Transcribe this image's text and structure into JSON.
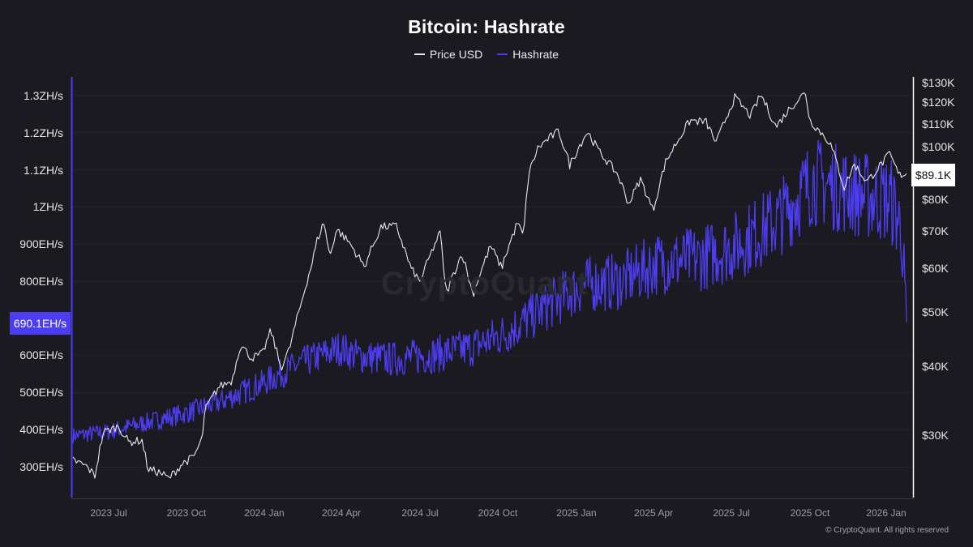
{
  "chart_data": {
    "type": "line",
    "title": "Bitcoin: Hashrate",
    "legend": [
      {
        "name": "Price USD",
        "color": "#e8e8ee"
      },
      {
        "name": "Hashrate",
        "color": "#4c3df2"
      }
    ],
    "x_ticks": [
      "2023 Jul",
      "2023 Oct",
      "2024 Jan",
      "2024 Apr",
      "2024 Jul",
      "2024 Oct",
      "2025 Jan",
      "2025 Apr",
      "2025 Jul",
      "2025 Oct",
      "2026 Jan"
    ],
    "x_range": [
      "2023-05-20",
      "2026-02-03"
    ],
    "y_left": {
      "label": "Hashrate",
      "scale": "linear",
      "range_EH": [
        240,
        1320
      ],
      "ticks": [
        {
          "label": "1.3ZH/s",
          "value": 1300
        },
        {
          "label": "1.2ZH/s",
          "value": 1200
        },
        {
          "label": "1.1ZH/s",
          "value": 1100
        },
        {
          "label": "1ZH/s",
          "value": 1000
        },
        {
          "label": "900EH/s",
          "value": 900
        },
        {
          "label": "800EH/s",
          "value": 800
        },
        {
          "label": "600EH/s",
          "value": 600
        },
        {
          "label": "500EH/s",
          "value": 500
        },
        {
          "label": "400EH/s",
          "value": 400
        },
        {
          "label": "300EH/s",
          "value": 300
        }
      ],
      "current_label": "690.1EH/s"
    },
    "y_right": {
      "label": "Price USD",
      "scale": "log",
      "range": [
        24000,
        134000
      ],
      "ticks": [
        {
          "label": "$130K",
          "value": 130000
        },
        {
          "label": "$120K",
          "value": 120000
        },
        {
          "label": "$110K",
          "value": 110000
        },
        {
          "label": "$100K",
          "value": 100000
        },
        {
          "label": "$80K",
          "value": 80000
        },
        {
          "label": "$70K",
          "value": 70000
        },
        {
          "label": "$60K",
          "value": 60000
        },
        {
          "label": "$50K",
          "value": 50000
        },
        {
          "label": "$40K",
          "value": 40000
        },
        {
          "label": "$30K",
          "value": 30000
        }
      ],
      "current_label": "$89.1K"
    },
    "series": [
      {
        "name": "Price USD",
        "axis": "right",
        "points": [
          [
            "2023-05-20",
            27200
          ],
          [
            "2023-06-05",
            26500
          ],
          [
            "2023-06-15",
            25500
          ],
          [
            "2023-06-25",
            30500
          ],
          [
            "2023-07-13",
            31300
          ],
          [
            "2023-07-25",
            29300
          ],
          [
            "2023-08-10",
            29500
          ],
          [
            "2023-08-17",
            26200
          ],
          [
            "2023-09-01",
            25800
          ],
          [
            "2023-09-11",
            25200
          ],
          [
            "2023-09-28",
            26900
          ],
          [
            "2023-10-10",
            27500
          ],
          [
            "2023-10-20",
            29500
          ],
          [
            "2023-10-24",
            33500
          ],
          [
            "2023-11-09",
            36800
          ],
          [
            "2023-11-25",
            37800
          ],
          [
            "2023-12-05",
            43900
          ],
          [
            "2023-12-18",
            41500
          ],
          [
            "2023-12-31",
            42200
          ],
          [
            "2024-01-10",
            46500
          ],
          [
            "2024-01-22",
            39800
          ],
          [
            "2024-02-01",
            43000
          ],
          [
            "2024-02-15",
            52000
          ],
          [
            "2024-02-28",
            61500
          ],
          [
            "2024-03-05",
            67500
          ],
          [
            "2024-03-13",
            72800
          ],
          [
            "2024-03-20",
            63000
          ],
          [
            "2024-03-28",
            70800
          ],
          [
            "2024-04-12",
            67000
          ],
          [
            "2024-04-30",
            60600
          ],
          [
            "2024-05-20",
            71400
          ],
          [
            "2024-06-07",
            71600
          ],
          [
            "2024-06-24",
            60300
          ],
          [
            "2024-07-05",
            56800
          ],
          [
            "2024-07-29",
            69800
          ],
          [
            "2024-08-05",
            54000
          ],
          [
            "2024-08-24",
            64000
          ],
          [
            "2024-09-06",
            53900
          ],
          [
            "2024-09-27",
            66000
          ],
          [
            "2024-10-10",
            60300
          ],
          [
            "2024-10-29",
            72700
          ],
          [
            "2024-11-05",
            68500
          ],
          [
            "2024-11-11",
            88600
          ],
          [
            "2024-11-22",
            98900
          ],
          [
            "2024-12-05",
            103000
          ],
          [
            "2024-12-17",
            106100
          ],
          [
            "2024-12-30",
            92400
          ],
          [
            "2025-01-20",
            106000
          ],
          [
            "2025-02-03",
            97500
          ],
          [
            "2025-02-25",
            88700
          ],
          [
            "2025-03-10",
            78600
          ],
          [
            "2025-03-24",
            87000
          ],
          [
            "2025-04-08",
            76300
          ],
          [
            "2025-04-23",
            93500
          ],
          [
            "2025-05-22",
            111000
          ],
          [
            "2025-06-10",
            110200
          ],
          [
            "2025-06-22",
            101000
          ],
          [
            "2025-07-14",
            122000
          ],
          [
            "2025-08-02",
            113000
          ],
          [
            "2025-08-14",
            123500
          ],
          [
            "2025-09-01",
            108000
          ],
          [
            "2025-09-18",
            117000
          ],
          [
            "2025-10-06",
            124700
          ],
          [
            "2025-10-11",
            111000
          ],
          [
            "2025-11-04",
            101300
          ],
          [
            "2025-11-21",
            84000
          ],
          [
            "2025-12-03",
            92500
          ],
          [
            "2025-12-18",
            86000
          ],
          [
            "2026-01-14",
            96500
          ],
          [
            "2026-01-25",
            88500
          ],
          [
            "2026-02-03",
            89100
          ]
        ]
      },
      {
        "name": "Hashrate",
        "axis": "left",
        "unit": "EH/s",
        "points": [
          [
            "2023-05-20",
            385
          ],
          [
            "2023-07-01",
            395
          ],
          [
            "2023-08-15",
            420
          ],
          [
            "2023-10-01",
            445
          ],
          [
            "2023-11-15",
            480
          ],
          [
            "2023-12-31",
            525
          ],
          [
            "2024-02-15",
            580
          ],
          [
            "2024-04-01",
            620
          ],
          [
            "2024-04-20",
            600
          ],
          [
            "2024-06-01",
            590
          ],
          [
            "2024-07-15",
            600
          ],
          [
            "2024-09-01",
            620
          ],
          [
            "2024-10-15",
            660
          ],
          [
            "2024-12-01",
            730
          ],
          [
            "2025-01-15",
            790
          ],
          [
            "2025-03-01",
            800
          ],
          [
            "2025-04-15",
            850
          ],
          [
            "2025-06-01",
            860
          ],
          [
            "2025-07-15",
            895
          ],
          [
            "2025-09-01",
            960
          ],
          [
            "2025-10-15",
            1070
          ],
          [
            "2025-11-15",
            1050
          ],
          [
            "2025-12-15",
            1030
          ],
          [
            "2026-01-15",
            1020
          ],
          [
            "2026-01-28",
            940
          ],
          [
            "2026-02-03",
            690
          ]
        ]
      }
    ]
  },
  "watermark": "CryptoQuant",
  "copyright": "© CryptoQuant. All rights reserved"
}
